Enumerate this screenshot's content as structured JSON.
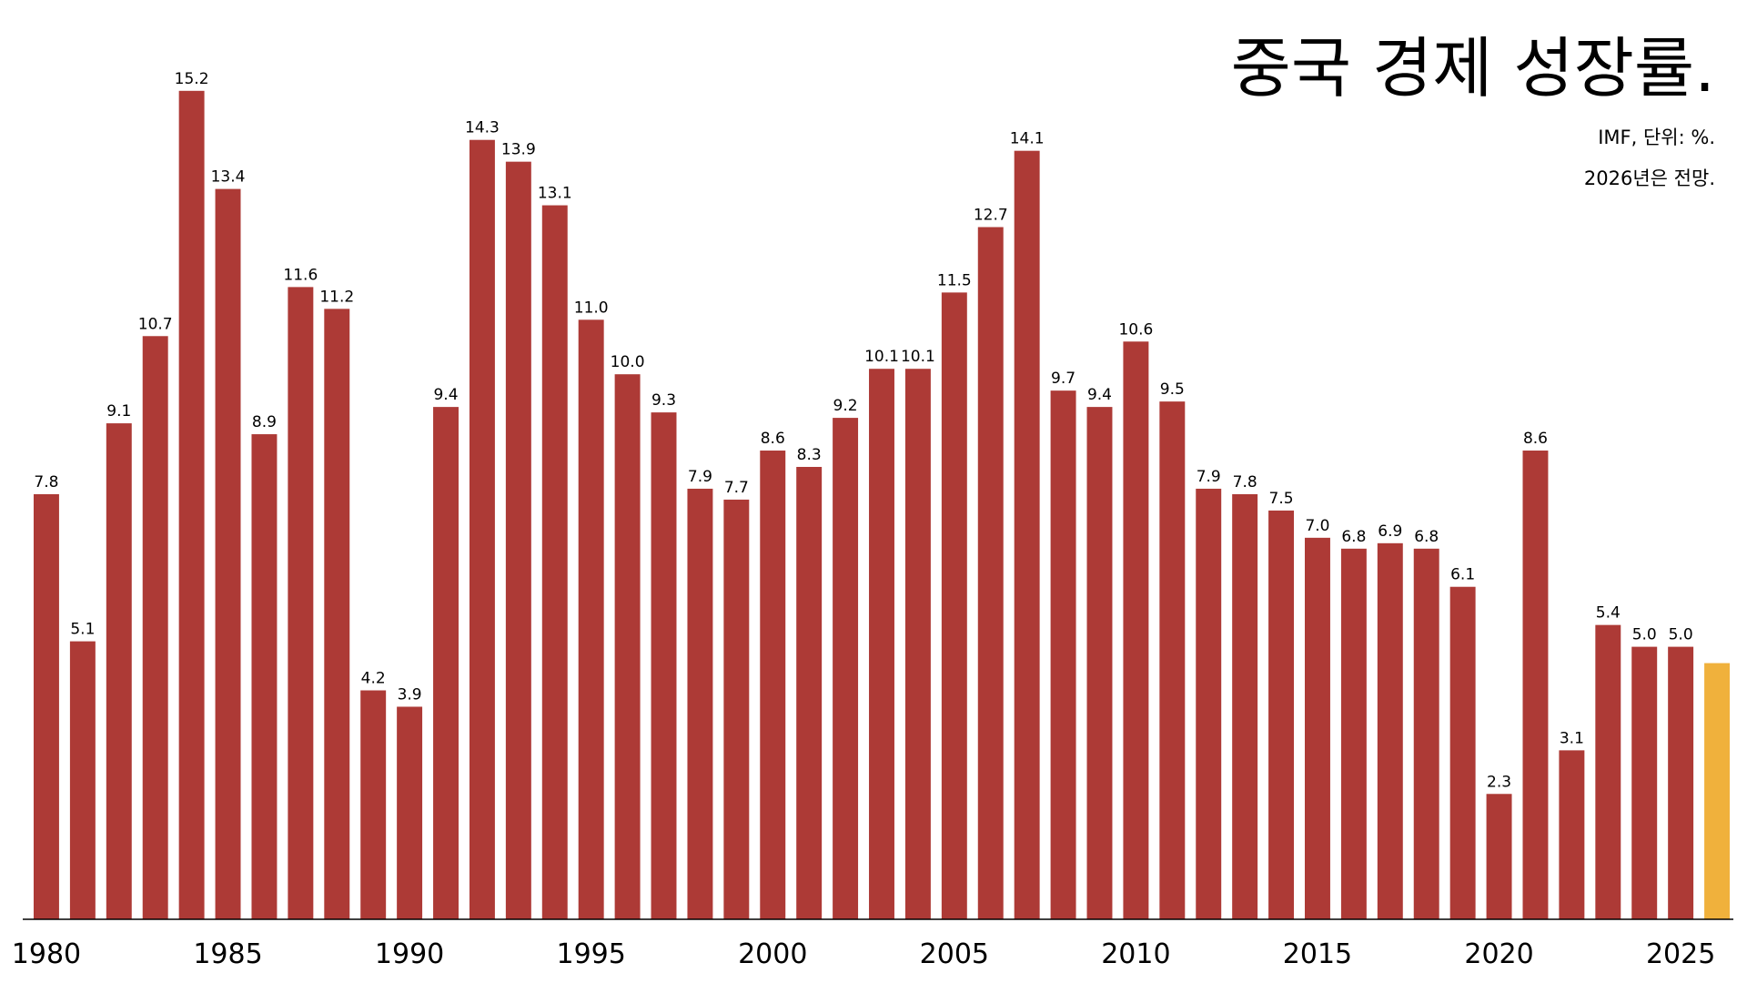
{
  "chart_data": {
    "type": "bar",
    "title": "중국 경제 성장률.",
    "subtitle": "IMF, 단위: %.",
    "note": "2026년은 전망.",
    "x": [
      1980,
      1981,
      1982,
      1983,
      1984,
      1985,
      1986,
      1987,
      1988,
      1989,
      1990,
      1991,
      1992,
      1993,
      1994,
      1995,
      1996,
      1997,
      1998,
      1999,
      2000,
      2001,
      2002,
      2003,
      2004,
      2005,
      2006,
      2007,
      2008,
      2009,
      2010,
      2011,
      2012,
      2013,
      2014,
      2015,
      2016,
      2017,
      2018,
      2019,
      2020,
      2021,
      2022,
      2023,
      2024,
      2025,
      2026
    ],
    "values": [
      7.8,
      5.1,
      9.1,
      10.7,
      15.2,
      13.4,
      8.9,
      11.6,
      11.2,
      4.2,
      3.9,
      9.4,
      14.3,
      13.9,
      13.1,
      11.0,
      10.0,
      9.3,
      7.9,
      7.7,
      8.6,
      8.3,
      9.2,
      10.1,
      10.1,
      11.5,
      12.7,
      14.1,
      9.7,
      9.4,
      10.6,
      9.5,
      7.9,
      7.8,
      7.5,
      7.0,
      6.8,
      6.9,
      6.8,
      6.1,
      2.3,
      8.6,
      3.1,
      5.4,
      5.0,
      5.0,
      4.7
    ],
    "value_labels": [
      "7.8",
      "5.1",
      "9.1",
      "10.7",
      "15.2",
      "13.4",
      "8.9",
      "11.6",
      "11.2",
      "4.2",
      "3.9",
      "9.4",
      "14.3",
      "13.9",
      "13.1",
      "11.0",
      "10.0",
      "9.3",
      "7.9",
      "7.7",
      "8.6",
      "8.3",
      "9.2",
      "10.1",
      "10.1",
      "11.5",
      "12.7",
      "14.1",
      "9.7",
      "9.4",
      "10.6",
      "9.5",
      "7.9",
      "7.8",
      "7.5",
      "7.0",
      "6.8",
      "6.9",
      "6.8",
      "6.1",
      "2.3",
      "8.6",
      "3.1",
      "5.4",
      "5.0",
      "5.0",
      null
    ],
    "colors": [
      "#ad3a36",
      "#ad3a36",
      "#ad3a36",
      "#ad3a36",
      "#ad3a36",
      "#ad3a36",
      "#ad3a36",
      "#ad3a36",
      "#ad3a36",
      "#ad3a36",
      "#ad3a36",
      "#ad3a36",
      "#ad3a36",
      "#ad3a36",
      "#ad3a36",
      "#ad3a36",
      "#ad3a36",
      "#ad3a36",
      "#ad3a36",
      "#ad3a36",
      "#ad3a36",
      "#ad3a36",
      "#ad3a36",
      "#ad3a36",
      "#ad3a36",
      "#ad3a36",
      "#ad3a36",
      "#ad3a36",
      "#ad3a36",
      "#ad3a36",
      "#ad3a36",
      "#ad3a36",
      "#ad3a36",
      "#ad3a36",
      "#ad3a36",
      "#ad3a36",
      "#ad3a36",
      "#ad3a36",
      "#ad3a36",
      "#ad3a36",
      "#ad3a36",
      "#ad3a36",
      "#ad3a36",
      "#ad3a36",
      "#ad3a36",
      "#ad3a36",
      "#f0b13c"
    ],
    "xlim": [
      1979.5,
      2026.5
    ],
    "xticks": [
      1980,
      1985,
      1990,
      1995,
      2000,
      2005,
      2010,
      2015,
      2020,
      2025
    ],
    "ylim": [
      0,
      16.8
    ],
    "grid": false
  }
}
